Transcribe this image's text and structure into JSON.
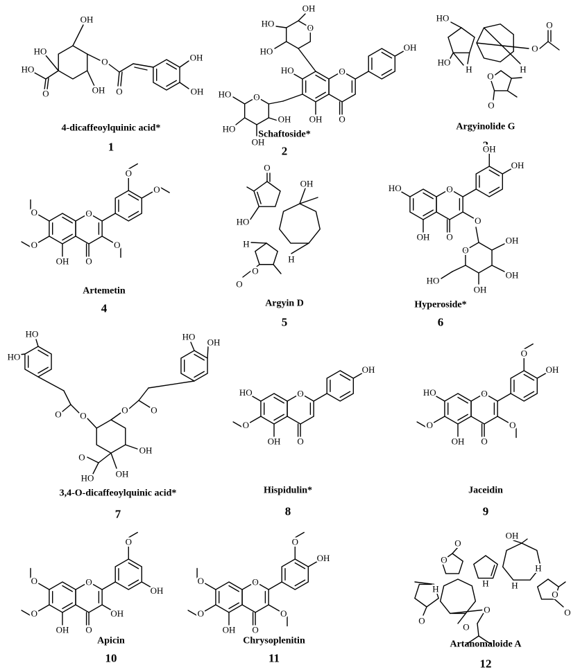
{
  "compounds": [
    {
      "name": "4-dicaffeoylquinic acid*",
      "number": 1,
      "atoms": [
        "OH",
        "HO",
        "O",
        "HO",
        "O",
        "OH",
        "O",
        "OH",
        "OH"
      ]
    },
    {
      "name": "Schaftoside*",
      "number": 2,
      "atoms": [
        "HO",
        "OH",
        "O",
        "O",
        "OH",
        "O",
        "OH",
        "HO",
        "HO",
        "O",
        "HO",
        "HO",
        "OH",
        "OH"
      ]
    },
    {
      "name": "Argyinolide G",
      "number": 3,
      "atoms": [
        "HO",
        "HO",
        "H",
        "H",
        "O",
        "O",
        "O",
        "O"
      ]
    },
    {
      "name": "Artemetin",
      "number": 4,
      "atoms": [
        "O",
        "O",
        "OH",
        "O",
        "O",
        "O",
        "O",
        "O"
      ]
    },
    {
      "name": "Argyin D",
      "number": 5,
      "atoms": [
        "O",
        "OH",
        "HO",
        "H",
        "O",
        "O",
        "H"
      ]
    },
    {
      "name": "Hyperoside*",
      "number": 6,
      "atoms": [
        "HO",
        "OH",
        "O",
        "O",
        "O",
        "OH",
        "OH",
        "O",
        "OH",
        "OH",
        "OH",
        "HO"
      ]
    },
    {
      "name": "3,4-O-dicaffeoylquinic acid*",
      "number": 7,
      "atoms": [
        "HO",
        "HO",
        "HO",
        "OH",
        "O",
        "O",
        "O",
        "O",
        "OH",
        "O",
        "HO",
        "OH"
      ]
    },
    {
      "name": "Hispidulin*",
      "number": 8,
      "atoms": [
        "HO",
        "O",
        "OH",
        "O",
        "O",
        "OH"
      ]
    },
    {
      "name": "Jaceidin",
      "number": 9,
      "atoms": [
        "HO",
        "O",
        "OH",
        "O",
        "O",
        "O",
        "O",
        "OH"
      ]
    },
    {
      "name": "Apicin",
      "number": 10,
      "atoms": [
        "O",
        "O",
        "OH",
        "O",
        "O",
        "OH",
        "O",
        "OH"
      ]
    },
    {
      "name": "Chrysoplenitin",
      "number": 11,
      "atoms": [
        "O",
        "O",
        "OH",
        "O",
        "O",
        "O",
        "O",
        "OH"
      ]
    },
    {
      "name": "Artanomaloide A",
      "number": 12,
      "atoms": [
        "OH",
        "O",
        "O",
        "H",
        "H",
        "H",
        "H",
        "O",
        "O",
        "O",
        "O",
        "O"
      ]
    }
  ]
}
